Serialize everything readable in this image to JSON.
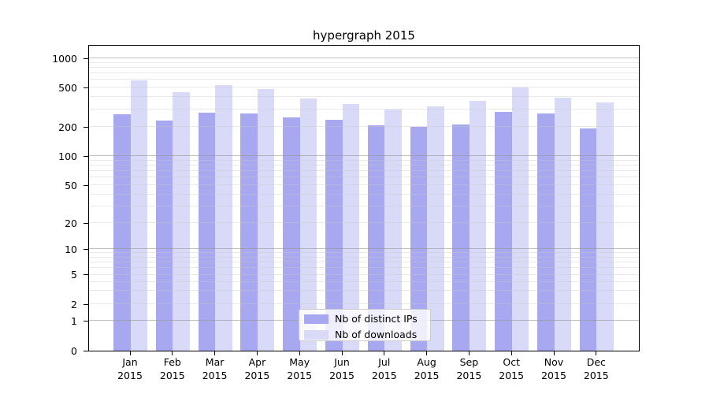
{
  "chart_data": {
    "type": "bar",
    "title": "hypergraph 2015",
    "categories": [
      "Jan 2015",
      "Feb 2015",
      "Mar 2015",
      "Apr 2015",
      "May 2015",
      "Jun 2015",
      "Jul 2015",
      "Aug 2015",
      "Sep 2015",
      "Oct 2015",
      "Nov 2015",
      "Dec 2015"
    ],
    "series": [
      {
        "name": "Nb of distinct IPs",
        "color": "#a8a8f0",
        "values": [
          268,
          230,
          280,
          272,
          251,
          235,
          206,
          199,
          212,
          283,
          272,
          191
        ]
      },
      {
        "name": "Nb of downloads",
        "color": "#d9d9f8",
        "values": [
          595,
          447,
          532,
          484,
          388,
          341,
          299,
          323,
          367,
          500,
          396,
          354
        ]
      }
    ],
    "xlabel": "",
    "ylabel": "",
    "yscale": "symlog",
    "y_ticks": [
      0,
      1,
      2,
      5,
      10,
      20,
      50,
      100,
      200,
      500,
      1000
    ],
    "ylim": [
      0,
      1150
    ],
    "grid": true,
    "legend_position": "lower center",
    "legend_entries": [
      "Nb of distinct IPs",
      "Nb of downloads"
    ]
  }
}
